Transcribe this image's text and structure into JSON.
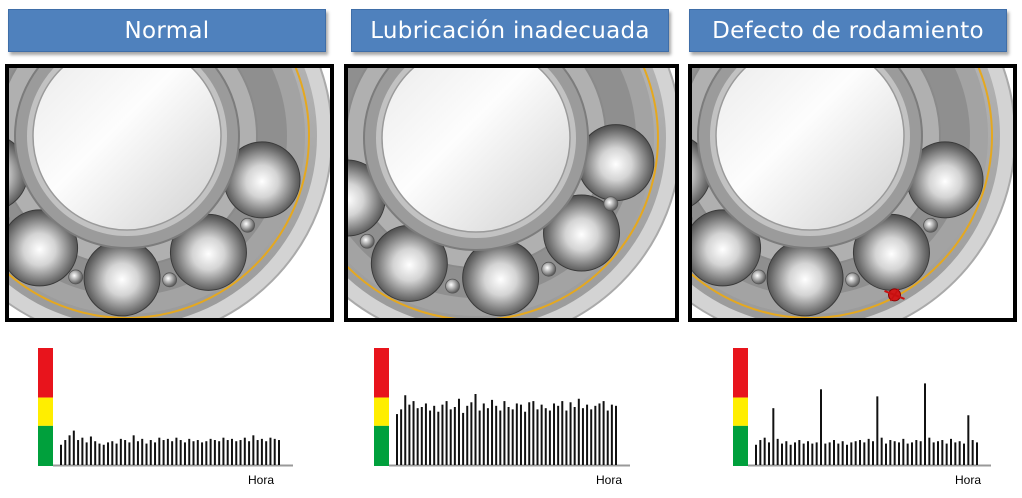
{
  "panels": [
    {
      "title": "Normal",
      "condition": "normal",
      "chart_data": {
        "type": "bar",
        "xlabel": "Hora",
        "ylabel": "",
        "ylim": [
          0,
          100
        ],
        "severity_scale": [
          "#00a03c",
          "#ffee00",
          "#e8141c"
        ],
        "values": [
          18,
          22,
          26,
          30,
          22,
          24,
          20,
          25,
          21,
          19,
          18,
          20,
          21,
          19,
          23,
          22,
          20,
          26,
          21,
          23,
          19,
          22,
          20,
          24,
          22,
          23,
          21,
          24,
          22,
          20,
          23,
          21,
          22,
          20,
          21,
          23,
          22,
          21,
          24,
          22,
          23,
          21,
          22,
          24,
          21,
          26,
          22,
          23,
          21,
          24,
          23,
          22
        ]
      }
    },
    {
      "title": "Lubricación inadecuada",
      "condition": "lubrication",
      "chart_data": {
        "type": "bar",
        "xlabel": "Hora",
        "ylabel": "",
        "ylim": [
          0,
          100
        ],
        "severity_scale": [
          "#00a03c",
          "#ffee00",
          "#e8141c"
        ],
        "values": [
          44,
          48,
          60,
          52,
          55,
          49,
          50,
          53,
          47,
          51,
          46,
          52,
          55,
          48,
          50,
          57,
          45,
          51,
          54,
          61,
          47,
          53,
          49,
          56,
          51,
          47,
          55,
          50,
          48,
          53,
          52,
          46,
          54,
          55,
          48,
          52,
          49,
          47,
          53,
          51,
          55,
          47,
          54,
          50,
          57,
          49,
          52,
          48,
          51,
          53,
          55,
          47,
          52,
          51
        ]
      }
    },
    {
      "title": "Defecto de rodamiento",
      "condition": "defect",
      "chart_data": {
        "type": "bar",
        "xlabel": "Hora",
        "ylabel": "",
        "ylim": [
          0,
          100
        ],
        "severity_scale": [
          "#00a03c",
          "#ffee00",
          "#e8141c"
        ],
        "values": [
          18,
          22,
          24,
          20,
          49,
          23,
          19,
          21,
          18,
          20,
          22,
          19,
          21,
          19,
          20,
          65,
          19,
          20,
          22,
          19,
          21,
          18,
          20,
          21,
          22,
          20,
          23,
          21,
          59,
          24,
          19,
          22,
          21,
          20,
          23,
          19,
          20,
          22,
          21,
          70,
          24,
          20,
          21,
          22,
          19,
          23,
          20,
          21,
          19,
          43,
          22,
          20
        ]
      }
    }
  ]
}
